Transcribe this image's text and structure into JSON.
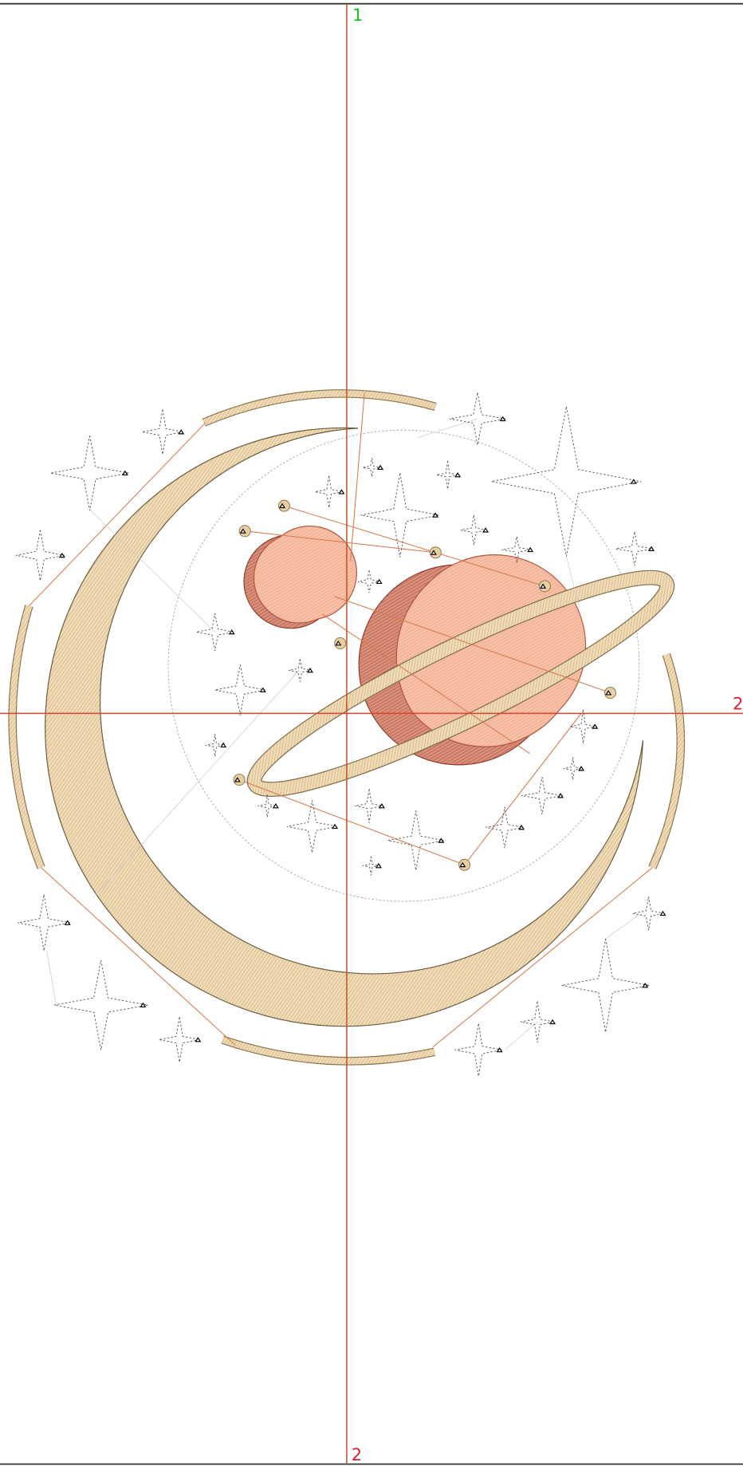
{
  "guides": {
    "vertical_label": "1",
    "horizontal_label": "2",
    "bottom_label": "2"
  }
}
